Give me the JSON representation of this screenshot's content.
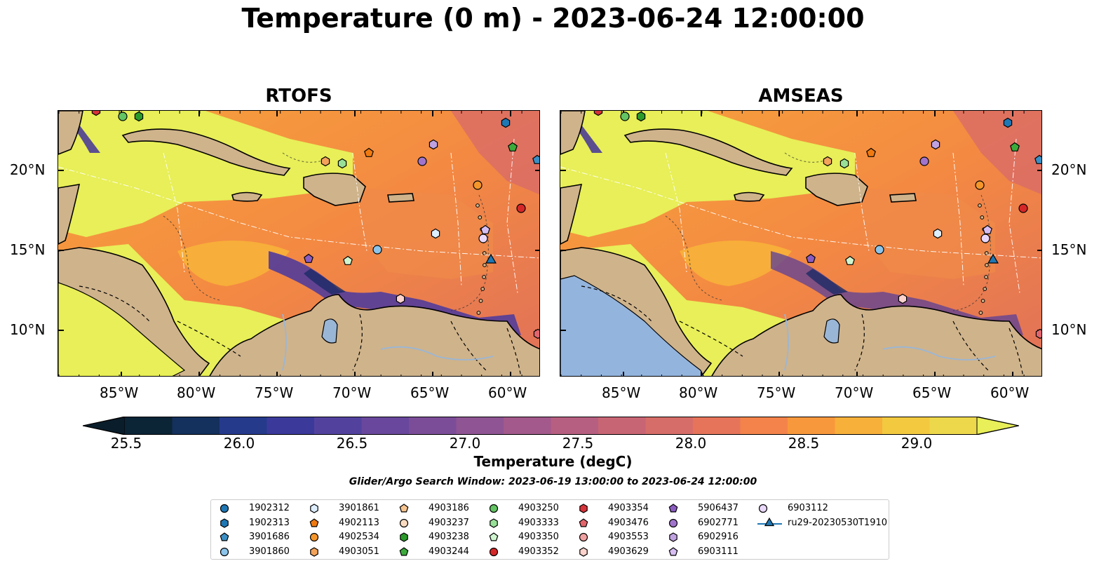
{
  "title": "Temperature (0 m) - 2023-06-24 12:00:00",
  "panels": [
    {
      "title": "RTOFS"
    },
    {
      "title": "AMSEAS"
    }
  ],
  "lat_labels": [
    "20°N",
    "15°N",
    "10°N"
  ],
  "lon_labels": [
    "85°W",
    "80°W",
    "75°W",
    "70°W",
    "65°W",
    "60°W"
  ],
  "colorbar": {
    "label": "Temperature (degC)",
    "ticks": [
      "25.5",
      "26.0",
      "26.5",
      "27.0",
      "27.5",
      "28.0",
      "28.5",
      "29.0"
    ],
    "colors": [
      "#0b2436",
      "#14305c",
      "#263a8c",
      "#3b3a9a",
      "#52429e",
      "#68479c",
      "#7b4d99",
      "#8f5493",
      "#a3598b",
      "#b75f80",
      "#c86574",
      "#d66d68",
      "#e6745a",
      "#f3834a",
      "#f8983c",
      "#f7b03a",
      "#f2c93f",
      "#edd84b"
    ],
    "extend_low": "#0a1d2b",
    "extend_high": "#e8ef58"
  },
  "search_window": "Glider/Argo Search Window: 2023-06-19 13:00:00 to 2023-06-24 12:00:00",
  "legend": [
    {
      "label": "1902312",
      "marker": "circle",
      "color": "#1f77b4"
    },
    {
      "label": "1902313",
      "marker": "hexagon",
      "color": "#1f77b4"
    },
    {
      "label": "3901686",
      "marker": "pentagon",
      "color": "#3b8fc4"
    },
    {
      "label": "3901860",
      "marker": "circle",
      "color": "#8cc4ea"
    },
    {
      "label": "3901861",
      "marker": "hexagon",
      "color": "#ddeeff"
    },
    {
      "label": "4902113",
      "marker": "pentagon",
      "color": "#f07a10"
    },
    {
      "label": "4902534",
      "marker": "circle",
      "color": "#f5962a"
    },
    {
      "label": "4903051",
      "marker": "hexagon",
      "color": "#f3a35a"
    },
    {
      "label": "4903186",
      "marker": "pentagon",
      "color": "#f7c48f"
    },
    {
      "label": "4903237",
      "marker": "circle",
      "color": "#fbdcc0"
    },
    {
      "label": "4903238",
      "marker": "hexagon",
      "color": "#2a9a2a"
    },
    {
      "label": "4903244",
      "marker": "pentagon",
      "color": "#3cab3c"
    },
    {
      "label": "4903250",
      "marker": "circle",
      "color": "#62c462"
    },
    {
      "label": "4903333",
      "marker": "hexagon",
      "color": "#98e098"
    },
    {
      "label": "4903350",
      "marker": "pentagon",
      "color": "#cff5cf"
    },
    {
      "label": "4903352",
      "marker": "circle",
      "color": "#d62728"
    },
    {
      "label": "4903354",
      "marker": "hexagon",
      "color": "#d6333a"
    },
    {
      "label": "4903476",
      "marker": "pentagon",
      "color": "#e3656c"
    },
    {
      "label": "4903553",
      "marker": "circle",
      "color": "#f0a0a0"
    },
    {
      "label": "4903629",
      "marker": "hexagon",
      "color": "#fcd2cc"
    },
    {
      "label": "5906437",
      "marker": "pentagon",
      "color": "#8a5cc0"
    },
    {
      "label": "6902771",
      "marker": "circle",
      "color": "#a074cc"
    },
    {
      "label": "6902916",
      "marker": "hexagon",
      "color": "#c0a2e0"
    },
    {
      "label": "6903111",
      "marker": "pentagon",
      "color": "#d6bdf2"
    },
    {
      "label": "6903112",
      "marker": "circle",
      "color": "#ead8fb"
    },
    {
      "label": "ru29-20230530T1910",
      "marker": "triangle-line",
      "color": "#1f77b4"
    }
  ],
  "colors": {
    "land": "#cfb38b",
    "river": "#9ab6d6",
    "ocean_warm": "#f4953e",
    "shelf": "#e8ef58"
  }
}
